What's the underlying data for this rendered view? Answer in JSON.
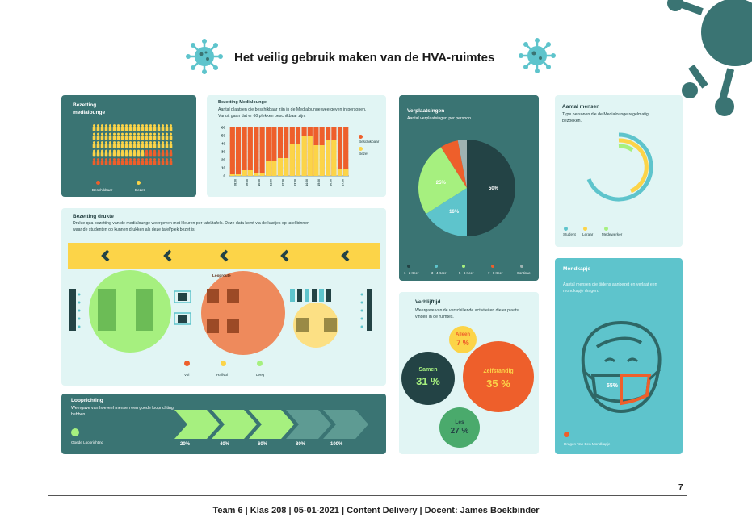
{
  "page": {
    "title": "Het veilig gebruik maken van de HVA-ruimtes",
    "footer": "Team 6 | Klas 208 | 05-01-2021 | Content Delivery | Docent: James Boekbinder",
    "page_number": "7"
  },
  "colors": {
    "dark_teal": "#3a7473",
    "light_teal": "#e1f5f4",
    "teal": "#5ec4cc",
    "orange": "#ee5f2b",
    "yellow": "#fcd448",
    "green": "#a6f07f",
    "darkest": "#234345",
    "grey": "#9fb3b2"
  },
  "bezetting": {
    "title": "Bezetting medialounge",
    "legend": [
      "Beschikbaar",
      "Bezet"
    ]
  },
  "medialounge_bar": {
    "title": "Bezetting Medialounge",
    "text": "Aantal plaatsen die beschikbaar zijn in de Medialounge weergeven in personen. Vanuit gaan dat er 60 plekken beschikbaar zijn.",
    "legend": [
      "Beschikbaar",
      "Bezet"
    ]
  },
  "drukte": {
    "title": "Bezetting drukte",
    "text": "Drukte qua bezetting van de medialounge weergeven met kleuren per tafel/tafels. Deze data komt via de kastjes op tafel binnen waar de studenten op kunnen drukken als deze tafel/plek bezet is.",
    "route_label": "Looproute",
    "legend": [
      "Vol",
      "Halfvol",
      "Leeg"
    ]
  },
  "looprichting": {
    "title": "Looprichting",
    "text": "Weergave van hoeveel mensen een goede looprichting hebben.",
    "legend": "Goede Looprichting",
    "steps": [
      "20%",
      "40%",
      "60%",
      "80%",
      "100%"
    ]
  },
  "verplaatsingen": {
    "title": "Verplaatsingen",
    "subtitle": "Aantal verplaatsingen per persoon."
  },
  "verblijftijd": {
    "title": "Verblijftijd",
    "text": "Weergave van de verschillende activiteiten die er plaats vinden in de ruimtes.",
    "bubbles": [
      {
        "name": "Alleen",
        "value": "7 %"
      },
      {
        "name": "Samen",
        "value": "31 %"
      },
      {
        "name": "Zelfstandig",
        "value": "35 %"
      },
      {
        "name": "Les",
        "value": "27 %"
      }
    ]
  },
  "aantal_mensen": {
    "title": "Aantal mensen",
    "text": "Type personen die de Medialounge regelmatig bezoeken.",
    "legend": [
      "Student",
      "Leraar",
      "Medewerker"
    ]
  },
  "mondkapje": {
    "title": "Mondkapje",
    "text": "Aantal mensen die tijdens aanbezet en verlaat een mondkapje dragen.",
    "value_label": "55%",
    "legend": "Dragen Van Een Mondkapje"
  },
  "chart_data": [
    {
      "type": "bar",
      "title": "Bezetting Medialounge",
      "categories": [
        "08:00",
        "09:00",
        "10:00",
        "11:00",
        "12:00",
        "13:00",
        "14:00",
        "15:00",
        "16:00",
        "17:00"
      ],
      "ylim": [
        0,
        60
      ],
      "yticks": [
        "0",
        "10",
        "20",
        "30",
        "40",
        "50",
        "60"
      ],
      "series": [
        {
          "name": "Beschikbaar",
          "values": [
            60,
            60,
            60,
            60,
            60,
            60,
            60,
            60,
            60,
            60
          ]
        },
        {
          "name": "Bezet",
          "values": [
            2,
            7,
            4,
            18,
            22,
            40,
            50,
            38,
            44,
            8
          ]
        }
      ]
    },
    {
      "type": "pie",
      "title": "Verplaatsingen",
      "slices": [
        {
          "name": "1 - 2 Keer",
          "value": 50,
          "label": "50%"
        },
        {
          "name": "3 - 4 Keer",
          "value": 16,
          "label": "16%"
        },
        {
          "name": "5 - 6 Keer",
          "value": 25,
          "label": "25%"
        },
        {
          "name": "7 - 8 Keer",
          "value": 6,
          "label": ""
        },
        {
          "name": "Continue",
          "value": 3,
          "label": ""
        }
      ]
    }
  ]
}
